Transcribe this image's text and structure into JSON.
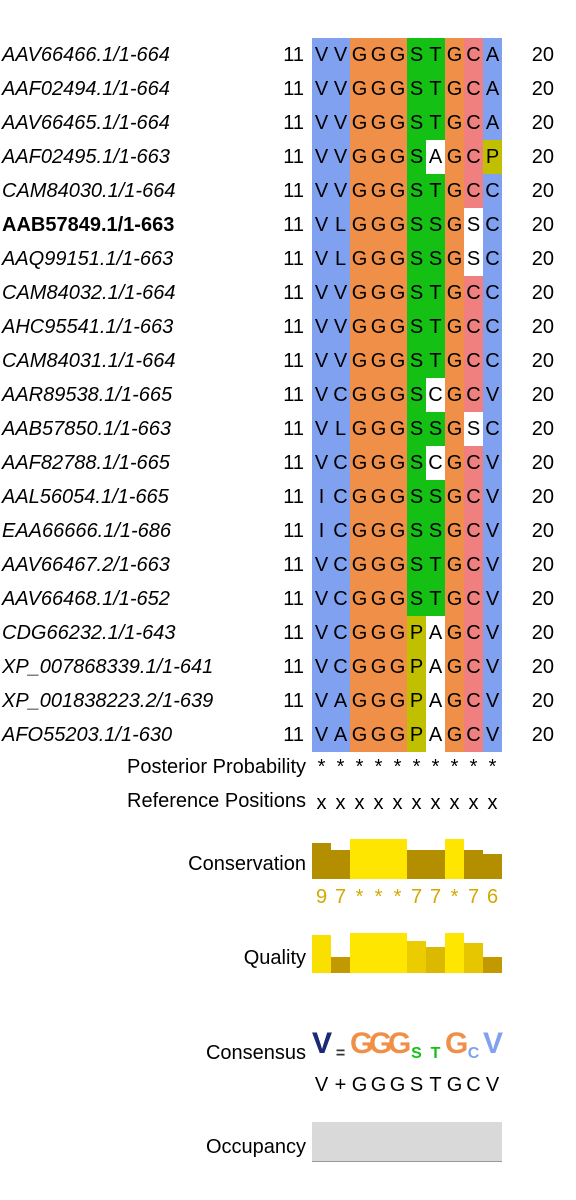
{
  "alignment": {
    "columns": 10,
    "rows": [
      {
        "name": "AAV66466.1/1-664",
        "start": "11",
        "end": "20",
        "seq": "VVGGGSTGCA",
        "bold": false
      },
      {
        "name": "AAF02494.1/1-664",
        "start": "11",
        "end": "20",
        "seq": "VVGGGSTGCA",
        "bold": false
      },
      {
        "name": "AAV66465.1/1-664",
        "start": "11",
        "end": "20",
        "seq": "VVGGGSTGCA",
        "bold": false
      },
      {
        "name": "AAF02495.1/1-663",
        "start": "11",
        "end": "20",
        "seq": "VVGGGSAGCP",
        "bold": false
      },
      {
        "name": "CAM84030.1/1-664",
        "start": "11",
        "end": "20",
        "seq": "VVGGGSTGCC",
        "bold": false
      },
      {
        "name": "AAB57849.1/1-663",
        "start": "11",
        "end": "20",
        "seq": "VLGGGSSGSC",
        "bold": true
      },
      {
        "name": "AAQ99151.1/1-663",
        "start": "11",
        "end": "20",
        "seq": "VLGGGSSGSC",
        "bold": false
      },
      {
        "name": "CAM84032.1/1-664",
        "start": "11",
        "end": "20",
        "seq": "VVGGGSTGCC",
        "bold": false
      },
      {
        "name": "AHC95541.1/1-663",
        "start": "11",
        "end": "20",
        "seq": "VVGGGSTGCC",
        "bold": false
      },
      {
        "name": "CAM84031.1/1-664",
        "start": "11",
        "end": "20",
        "seq": "VVGGGSTGCC",
        "bold": false
      },
      {
        "name": "AAR89538.1/1-665",
        "start": "11",
        "end": "20",
        "seq": "VCGGGSCGCV",
        "bold": false
      },
      {
        "name": "AAB57850.1/1-663",
        "start": "11",
        "end": "20",
        "seq": "VLGGGSSGSC",
        "bold": false
      },
      {
        "name": "AAF82788.1/1-665",
        "start": "11",
        "end": "20",
        "seq": "VCGGGSCGCV",
        "bold": false
      },
      {
        "name": "AAL56054.1/1-665",
        "start": "11",
        "end": "20",
        "seq": "ICGGGSSGCV",
        "bold": false
      },
      {
        "name": "EAA66666.1/1-686",
        "start": "11",
        "end": "20",
        "seq": "ICGGGSSGCV",
        "bold": false
      },
      {
        "name": "AAV66467.2/1-663",
        "start": "11",
        "end": "20",
        "seq": "VCGGGSTGCV",
        "bold": false
      },
      {
        "name": "AAV66468.1/1-652",
        "start": "11",
        "end": "20",
        "seq": "VCGGGSTGCV",
        "bold": false
      },
      {
        "name": "CDG66232.1/1-643",
        "start": "11",
        "end": "20",
        "seq": "VCGGGPAGCV",
        "bold": false
      },
      {
        "name": "XP_007868339.1/1-641",
        "start": "11",
        "end": "20",
        "seq": "VCGGGPAGCV",
        "bold": false
      },
      {
        "name": "XP_001838223.2/1-639",
        "start": "11",
        "end": "20",
        "seq": "VAGGGPAGCV",
        "bold": false
      },
      {
        "name": "AFO55203.1/1-630",
        "start": "11",
        "end": "20",
        "seq": "VAGGGPAGCV",
        "bold": false
      }
    ]
  },
  "colors": {
    "hydrophobic_blue": "#80a0f0",
    "glycine_orange": "#f09048",
    "polar_green": "#15c015",
    "proline_yellow": "#c0c000",
    "cysteine_pink": "#f08080",
    "conservation_low": "#b38f00",
    "conservation_high": "#ffe600"
  },
  "annotations": {
    "posterior_probability": {
      "label": "Posterior Probability",
      "values": [
        "*",
        "*",
        "*",
        "*",
        "*",
        "*",
        "*",
        "*",
        "*",
        "*"
      ]
    },
    "reference_positions": {
      "label": "Reference Positions",
      "values": [
        "x",
        "x",
        "x",
        "x",
        "x",
        "x",
        "x",
        "x",
        "x",
        "x"
      ]
    },
    "conservation": {
      "label": "Conservation",
      "scores": [
        "9",
        "7",
        "*",
        "*",
        "*",
        "7",
        "7",
        "*",
        "7",
        "6"
      ]
    },
    "quality": {
      "label": "Quality",
      "levels": [
        0.95,
        0.4,
        1.0,
        1.0,
        1.0,
        0.8,
        0.65,
        1.0,
        0.75,
        0.4
      ]
    },
    "consensus": {
      "label": "Consensus",
      "sequence": [
        "V",
        "+",
        "G",
        "G",
        "G",
        "S",
        "T",
        "G",
        "C",
        "V"
      ]
    },
    "occupancy": {
      "label": "Occupancy",
      "level": 1.0
    }
  }
}
